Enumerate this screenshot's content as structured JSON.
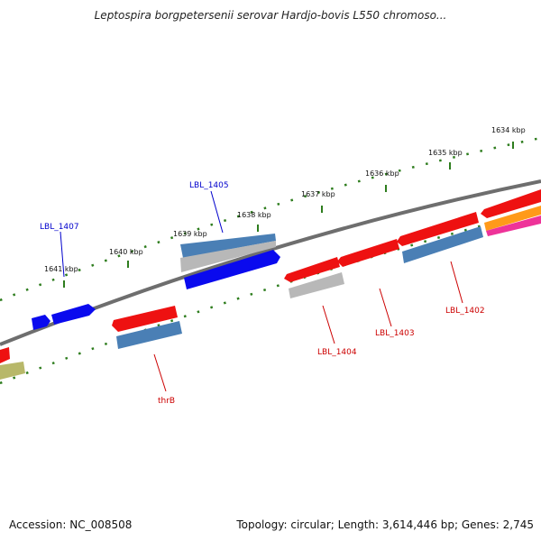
{
  "title": "Leptospira borgpetersenii serovar Hardjo-bovis L550 chromoso...",
  "footer": {
    "accession": "Accession: NC_008508",
    "summary": "Topology: circular; Length: 3,614,446 bp; Genes: 2,745"
  },
  "colors": {
    "backbone": "#808080",
    "tick": "#2e7d1e",
    "forward_label": "#0000cc",
    "reverse_label": "#cc0000",
    "red": "#ee1111",
    "blue": "#0a0aee",
    "steelblue": "#4a7fb5",
    "grey": "#b8b8b8",
    "olive": "#b8b86a",
    "orange": "#ff9a1a",
    "magenta": "#ee3399"
  },
  "ruler": {
    "ticks": [
      {
        "label": "1634 kbp"
      },
      {
        "label": "1635 kbp"
      },
      {
        "label": "1636 kbp"
      },
      {
        "label": "1637 kbp"
      },
      {
        "label": "1638 kbp"
      },
      {
        "label": "1639 kbp"
      },
      {
        "label": "1640 kbp"
      },
      {
        "label": "1641 kbp"
      }
    ]
  },
  "genes": {
    "labels": [
      {
        "text": "LBL_1402",
        "strand": "reverse"
      },
      {
        "text": "LBL_1403",
        "strand": "reverse"
      },
      {
        "text": "LBL_1404",
        "strand": "reverse"
      },
      {
        "text": "thrB",
        "strand": "reverse"
      },
      {
        "text": "LBL_1405",
        "strand": "forward"
      },
      {
        "text": "LBL_1407",
        "strand": "forward"
      }
    ]
  }
}
